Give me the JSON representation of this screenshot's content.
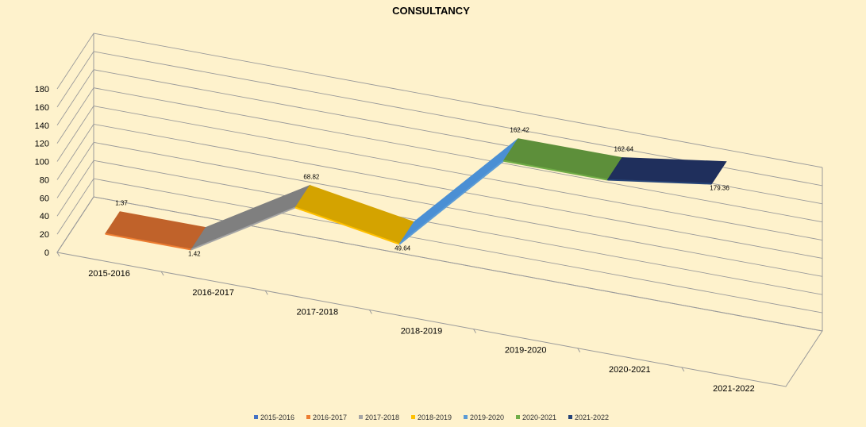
{
  "chart_data": {
    "type": "line",
    "title": "CONSULTANCY",
    "xlabel": "",
    "ylabel": "",
    "ylim": [
      0,
      180
    ],
    "yticks": [
      "0",
      "20",
      "40",
      "60",
      "80",
      "100",
      "120",
      "140",
      "160",
      "180"
    ],
    "categories": [
      "2015-2016",
      "2016-2017",
      "2017-2018",
      "2018-2019",
      "2019-2020",
      "2020-2021",
      "2021-2022"
    ],
    "values": [
      1.37,
      1.42,
      68.82,
      49.64,
      162.42,
      162.64,
      179.36
    ],
    "data_labels": [
      "1.37",
      "1.42",
      "68.82",
      "49.64",
      "162.42",
      "162.64",
      "179.36"
    ],
    "segment_colors": [
      "#4472C4",
      "#C0622A",
      "#7F7F7F",
      "#D4A300",
      "#4A8FD4",
      "#5D8F3A",
      "#1F2F5C"
    ],
    "legend": [
      "2015-2016",
      "2016-2017",
      "2017-2018",
      "2018-2019",
      "2019-2020",
      "2020-2021",
      "2021-2022"
    ],
    "legend_colors": [
      "#4472C4",
      "#ED7D31",
      "#A5A5A5",
      "#FFC000",
      "#5B9BD5",
      "#70AD47",
      "#264478"
    ],
    "legend_position": "bottom",
    "grid": true
  }
}
